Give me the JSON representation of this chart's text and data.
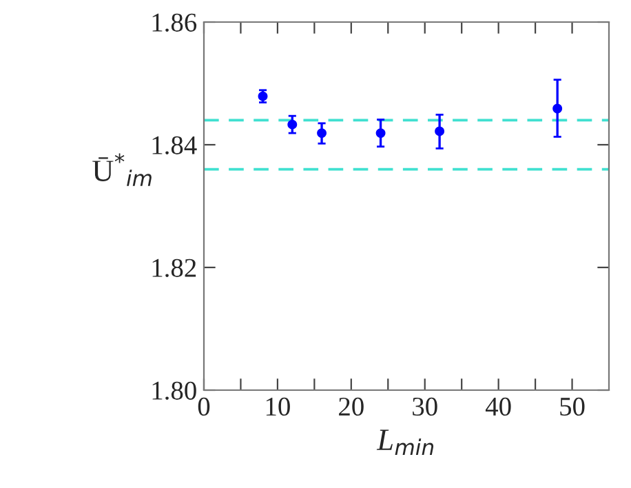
{
  "chart_data": {
    "type": "scatter",
    "xlabel": "L$_{min}$",
    "ylabel": "Ū$^{*}$$_{im}$",
    "x": [
      8,
      12,
      16,
      24,
      32,
      48
    ],
    "series": [
      {
        "color": "#0000ff",
        "values": [
          1.8479,
          1.8433,
          1.8419,
          1.8419,
          1.8422,
          1.8459
        ],
        "errors": [
          [
            1.8469,
            1.8489
          ],
          [
            1.8419,
            1.8447
          ],
          [
            1.8402,
            1.8435
          ],
          [
            1.8397,
            1.8441
          ],
          [
            1.8394,
            1.8449
          ],
          [
            1.8413,
            1.8506
          ]
        ]
      }
    ],
    "marker": "circle",
    "ref_lines": [
      {
        "axis": "y",
        "value": 1.844,
        "color": "#40e0d0",
        "line_style": "dashed"
      },
      {
        "axis": "y",
        "value": 1.836,
        "color": "#40e0d0",
        "line_style": "dashed"
      }
    ],
    "xlim": [
      0,
      55
    ],
    "ylim": [
      1.8,
      1.86
    ],
    "xticks": [
      0,
      {
        "value": 5,
        "label": null
      },
      10,
      {
        "value": 15,
        "label": null
      },
      20,
      {
        "value": 25,
        "label": null
      },
      30,
      {
        "value": 35,
        "label": null
      },
      40,
      {
        "value": 45,
        "label": null
      },
      50
    ],
    "yticks": [
      {
        "value": 1.8,
        "label": "1.80"
      },
      1.82,
      1.84,
      1.86
    ],
    "grid": false,
    "legend": false
  }
}
